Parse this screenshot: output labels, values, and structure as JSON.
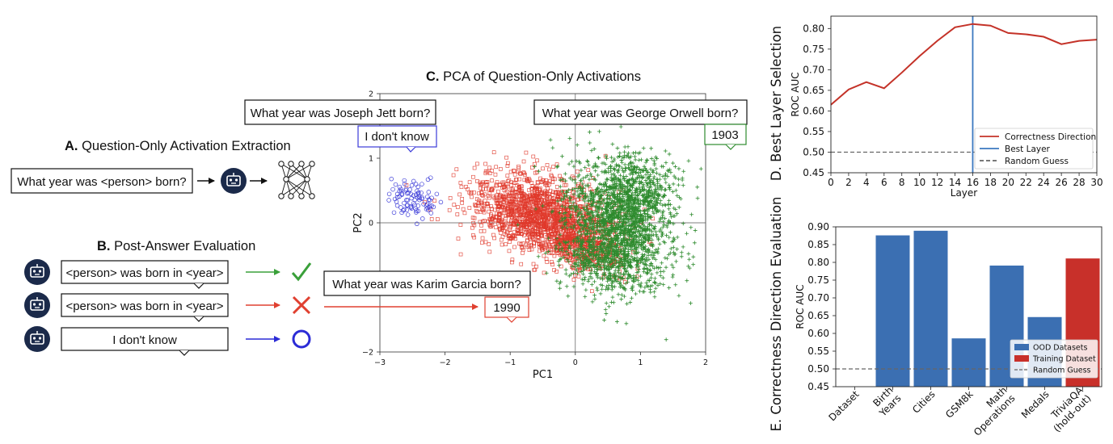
{
  "panel_a": {
    "letter": "A.",
    "title": "Question-Only Activation Extraction",
    "prompt": "What year was <person> born?"
  },
  "panel_b": {
    "letter": "B.",
    "title": "Post-Answer Evaluation",
    "rows": [
      {
        "text": "<person> was born in <year>",
        "outcome": "correct",
        "color": "#3aa03a",
        "symbol": "check-icon"
      },
      {
        "text": "<person> was born in <year>",
        "outcome": "incorrect",
        "color": "#e04030",
        "symbol": "cross-icon"
      },
      {
        "text": "I don't know",
        "outcome": "abstain",
        "color": "#2b2bd6",
        "symbol": "circle-icon"
      }
    ]
  },
  "panel_c": {
    "letter": "C.",
    "title": "PCA of Question-Only Activations",
    "question_jett": "What year was Joseph Jett born?",
    "answer_jett": "I don't know",
    "question_orwell": "What year was George Orwell born?",
    "answer_orwell": "1903",
    "question_garcia": "What year was Karim Garcia born?",
    "answer_garcia": "1990",
    "colors": {
      "correct": "#2e8b2e",
      "incorrect": "#e0392b",
      "abstain": "#3b3bd8"
    }
  },
  "chart_data": [
    {
      "type": "scatter",
      "panel": "C",
      "xlabel": "PC1",
      "ylabel": "PC2",
      "xlim": [
        -3,
        2
      ],
      "ylim": [
        -2,
        2
      ],
      "xticks": [
        "−3",
        "−2",
        "−1",
        "0",
        "1",
        "2"
      ],
      "yticks": [
        "2",
        "1",
        "0",
        "−1",
        "−2"
      ],
      "clusters": [
        {
          "group": "abstain",
          "marker": "circle",
          "center": [
            -2.5,
            0.35
          ],
          "spread": [
            0.2,
            0.16
          ]
        },
        {
          "group": "incorrect",
          "marker": "square",
          "center": [
            -0.55,
            0.1
          ],
          "spread": [
            0.55,
            0.3
          ]
        },
        {
          "group": "correct",
          "marker": "plus",
          "center": [
            0.65,
            -0.05
          ],
          "spread": [
            0.42,
            0.5
          ]
        }
      ]
    },
    {
      "type": "line",
      "panel": "D",
      "title": "D. Best Layer Selection",
      "xlabel": "Layer",
      "ylabel": "ROC AUC",
      "xlim": [
        0,
        30
      ],
      "ylim": [
        0.45,
        0.83
      ],
      "xticks": [
        "0",
        "2",
        "4",
        "6",
        "8",
        "10",
        "12",
        "14",
        "16",
        "18",
        "20",
        "22",
        "24",
        "26",
        "28",
        "30"
      ],
      "yticks": [
        "0.45",
        "0.50",
        "0.55",
        "0.60",
        "0.65",
        "0.70",
        "0.75",
        "0.80"
      ],
      "x": [
        0,
        2,
        4,
        6,
        8,
        10,
        12,
        14,
        16,
        18,
        20,
        22,
        24,
        26,
        28,
        30
      ],
      "series": [
        {
          "name": "Correctness Direction",
          "color": "#c43228",
          "values": [
            0.615,
            0.652,
            0.67,
            0.655,
            0.693,
            0.733,
            0.77,
            0.803,
            0.811,
            0.807,
            0.789,
            0.786,
            0.78,
            0.762,
            0.77,
            0.773
          ]
        }
      ],
      "best_layer": 16,
      "random_guess": 0.5,
      "legend": [
        "Correctness Direction",
        "Best Layer",
        "Random Guess"
      ],
      "legend_position": "lower-right"
    },
    {
      "type": "bar",
      "panel": "E",
      "title": "E. Correctness Direction Evaluation",
      "ylabel": "ROC AUC",
      "ylim": [
        0.45,
        0.9
      ],
      "yticks": [
        "0.45",
        "0.50",
        "0.55",
        "0.60",
        "0.65",
        "0.70",
        "0.75",
        "0.80",
        "0.85",
        "0.90"
      ],
      "categories": [
        "Dataset",
        "Birth Years",
        "Cities",
        "GSM8k",
        "Math Operations",
        "Medals",
        "TriviaQA (hold-out)"
      ],
      "tick_labels": [
        [
          "Dataset"
        ],
        [
          "Birth",
          "Years"
        ],
        [
          "Cities"
        ],
        [
          "GSM8k"
        ],
        [
          "Math",
          "Operations"
        ],
        [
          "Medals"
        ],
        [
          "TriviaQA",
          "(hold-out)"
        ]
      ],
      "values": [
        null,
        0.876,
        0.889,
        0.586,
        0.791,
        0.646,
        0.811
      ],
      "groups": [
        null,
        "ood",
        "ood",
        "ood",
        "ood",
        "ood",
        "training"
      ],
      "colors": {
        "ood": "#3b6fb2",
        "training": "#c8302a"
      },
      "random_guess": 0.5,
      "legend": [
        "OOD Datasets",
        "Training Dataset",
        "Random Guess"
      ],
      "legend_position": "lower-right"
    }
  ]
}
